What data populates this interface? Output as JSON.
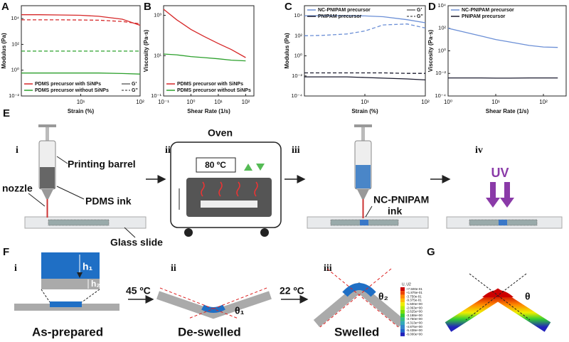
{
  "chart_data": [
    {
      "type": "line",
      "panel": "A",
      "xlabel": "Strain (%)",
      "ylabel": "Modulus (Pa)",
      "xscale": "log",
      "yscale": "log",
      "x": [
        1,
        2,
        5,
        10,
        20,
        50,
        100
      ],
      "xlim": [
        1,
        100
      ],
      "ylim": [
        0.01,
        100000
      ],
      "xticks": [
        {
          "value": 10,
          "label": "10¹"
        },
        {
          "value": 100,
          "label": "10²"
        }
      ],
      "yticks": [
        {
          "value": 0.01,
          "label": "10⁻²"
        },
        {
          "value": 1,
          "label": "10⁰"
        },
        {
          "value": 100,
          "label": "10²"
        },
        {
          "value": 10000,
          "label": "10⁴"
        }
      ],
      "legend": "bottom",
      "moduli": [
        "G'",
        "G''"
      ],
      "series": [
        {
          "name": "PDMS precursor with SiNPs",
          "color": "#d62728",
          "values": [
            20000,
            20000,
            19000,
            18000,
            15000,
            9000,
            3000
          ],
          "loss_values": [
            8000,
            8000,
            8000,
            7800,
            7500,
            6000,
            4000
          ]
        },
        {
          "name": "PDMS precursor without SiNPs",
          "color": "#2ca02c",
          "values": [
            0.6,
            0.6,
            0.6,
            0.6,
            0.6,
            0.55,
            0.5
          ],
          "loss_values": [
            30,
            30,
            30,
            30,
            30,
            30,
            30
          ]
        }
      ]
    },
    {
      "type": "line",
      "panel": "B",
      "xlabel": "Shear Rate (1/s)",
      "ylabel": "Viscosity (Pa·s)",
      "xscale": "log",
      "yscale": "log",
      "x": [
        0.1,
        0.3,
        1,
        3,
        10,
        30,
        100
      ],
      "xlim": [
        0.1,
        200
      ],
      "ylim": [
        0.1,
        3000
      ],
      "xticks": [
        {
          "value": 0.1,
          "label": "10⁻¹"
        },
        {
          "value": 1,
          "label": "10⁰"
        },
        {
          "value": 10,
          "label": "10¹"
        },
        {
          "value": 100,
          "label": "10²"
        }
      ],
      "yticks": [
        {
          "value": 0.1,
          "label": "10⁻¹"
        },
        {
          "value": 10,
          "label": "10¹"
        },
        {
          "value": 1000,
          "label": "10³"
        }
      ],
      "legend": "bottom",
      "series": [
        {
          "name": "PDMS precursor with SiNPs",
          "color": "#d62728",
          "values": [
            2000,
            600,
            200,
            90,
            40,
            20,
            8
          ]
        },
        {
          "name": "PDMS precursor without SiNPs",
          "color": "#2ca02c",
          "values": [
            12,
            11,
            9,
            8,
            7,
            6,
            5.5
          ]
        }
      ]
    },
    {
      "type": "line",
      "panel": "C",
      "xlabel": "Strain (%)",
      "ylabel": "Modulus (Pa)",
      "xscale": "log",
      "yscale": "log",
      "x": [
        1,
        2,
        5,
        10,
        20,
        50,
        100
      ],
      "xlim": [
        1,
        100
      ],
      "ylim": [
        0.0001,
        100000
      ],
      "xticks": [
        {
          "value": 10,
          "label": "10¹"
        },
        {
          "value": 100,
          "label": "10²"
        }
      ],
      "yticks": [
        {
          "value": 0.0001,
          "label": "10⁻⁴"
        },
        {
          "value": 0.01,
          "label": "10⁻²"
        },
        {
          "value": 1,
          "label": "10⁰"
        },
        {
          "value": 100,
          "label": "10²"
        },
        {
          "value": 10000,
          "label": "10⁴"
        }
      ],
      "legend": "top",
      "moduli": [
        "G'",
        "G''"
      ],
      "series": [
        {
          "name": "NC-PNIPAM precursor",
          "color": "#6b8fd6",
          "values": [
            10000,
            10000,
            10000,
            9500,
            8000,
            4000,
            2000
          ],
          "loss_values": [
            100,
            110,
            150,
            300,
            1200,
            1500,
            600
          ]
        },
        {
          "name": "PNIPAM precursor",
          "color": "#1a1a2e",
          "values": [
            0.008,
            0.008,
            0.008,
            0.007,
            0.006,
            0.005,
            0.004
          ],
          "loss_values": [
            0.02,
            0.02,
            0.02,
            0.02,
            0.02,
            0.018,
            0.018
          ]
        }
      ]
    },
    {
      "type": "line",
      "panel": "D",
      "xlabel": "Shear Rate (1/s)",
      "ylabel": "Viscosity (Pa·s)",
      "xscale": "log",
      "yscale": "log",
      "x": [
        1,
        2,
        5,
        10,
        20,
        50,
        100,
        200
      ],
      "xlim": [
        1,
        300
      ],
      "ylim": [
        0.0001,
        10000
      ],
      "xticks": [
        {
          "value": 1,
          "label": "10⁰"
        },
        {
          "value": 10,
          "label": "10¹"
        },
        {
          "value": 100,
          "label": "10²"
        }
      ],
      "yticks": [
        {
          "value": 0.0001,
          "label": "10⁻⁴"
        },
        {
          "value": 0.01,
          "label": "10⁻²"
        },
        {
          "value": 1,
          "label": "10⁰"
        },
        {
          "value": 100,
          "label": "10²"
        },
        {
          "value": 10000,
          "label": "10⁴"
        }
      ],
      "legend": "top",
      "series": [
        {
          "name": "NC-PNIPAM precursor",
          "color": "#6b8fd6",
          "values": [
            100,
            50,
            20,
            10,
            6,
            3,
            2.2,
            2
          ]
        },
        {
          "name": "PNIPAM precursor",
          "color": "#1a1a2e",
          "values": [
            0.004,
            0.004,
            0.004,
            0.0038,
            0.0038,
            0.004,
            0.004,
            0.004
          ]
        }
      ]
    }
  ],
  "figure": {
    "E": {
      "label": "E",
      "steps": [
        "i",
        "ii",
        "iii",
        "iv"
      ],
      "barrel": "Printing barrel",
      "nozzle": "nozzle",
      "ink": "PDMS ink",
      "slide": "Glass slide",
      "oven": "Oven",
      "temp": "80 ºC",
      "nc_ink": "NC-PNIPAM",
      "nc_ink2": "ink",
      "uv": "UV"
    },
    "F": {
      "label": "F",
      "steps": [
        "i",
        "ii",
        "iii"
      ],
      "h1": "h₁",
      "h2": "h₂",
      "heat": "45 ºC",
      "cool": "22 ºC",
      "theta1": "θ₁",
      "theta2": "θ₂",
      "prepared": "As-prepared",
      "deswelled": "De-swelled",
      "swelled": "Swelled"
    },
    "G": {
      "label": "G",
      "theta": "θ",
      "legend_title": "U, U2",
      "legend_values": [
        "+7.500e-01",
        "+1.875e-01",
        "-3.750e-01",
        "-9.375e-01",
        "-1.500e+00",
        "-2.063e+00",
        "-2.625e+00",
        "-3.188e+00",
        "-3.750e+00",
        "-4.313e+00",
        "-4.875e+00",
        "-5.438e+00",
        "-6.000e+00"
      ]
    }
  }
}
